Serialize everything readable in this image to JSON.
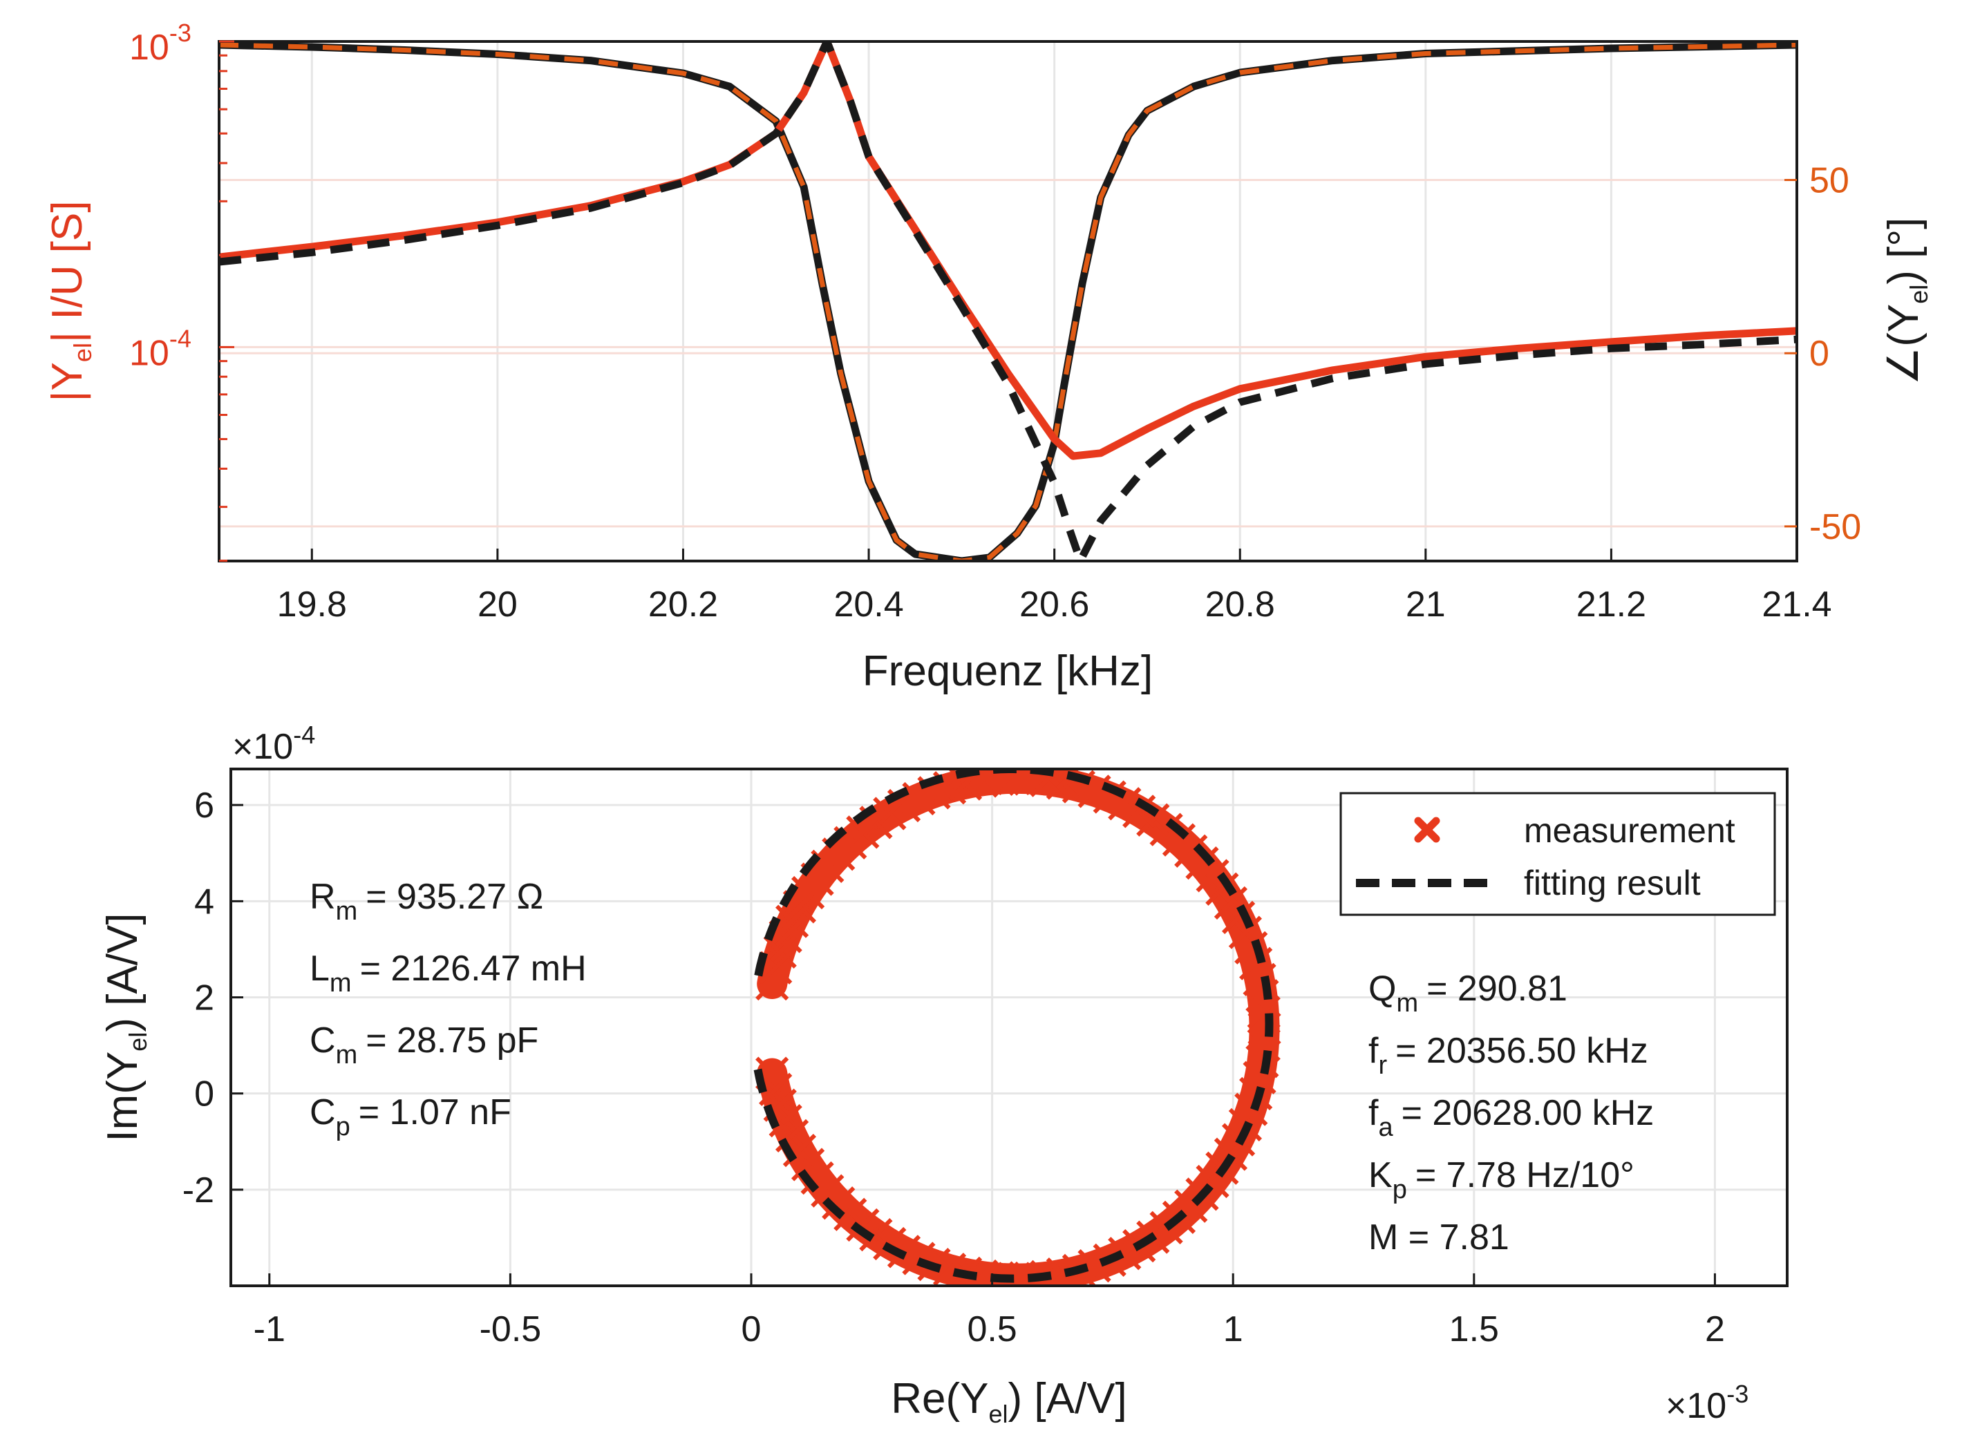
{
  "colors": {
    "measurement": "#e8391c",
    "fit": "#1a1a1a",
    "phase_fit_dash": "#e05a14",
    "left_axis": "#e0391e",
    "right_axis": "#e05a14",
    "grid": "#e6e6e6"
  },
  "chart_data": [
    {
      "type": "line",
      "title": "",
      "xlabel": "Frequenz [kHz]",
      "ylabel_left": {
        "pre": "|Y",
        "sub": "el",
        "post": "| I/U [S]"
      },
      "ylabel_right": {
        "pre": "∠(Y",
        "sub": "el",
        "post": ") [°]"
      },
      "xlim": [
        19.7,
        21.4
      ],
      "xticks": [
        "19.8",
        "20",
        "20.2",
        "20.4",
        "20.6",
        "20.8",
        "21",
        "21.2",
        "21.4"
      ],
      "xtick_values": [
        19.8,
        20.0,
        20.2,
        20.4,
        20.6,
        20.8,
        21.0,
        21.2,
        21.4
      ],
      "ylim_left_log10": [
        -4.7,
        -3.0
      ],
      "yticks_left": [
        {
          "base": "10",
          "exp": "-3",
          "value": 0.001
        },
        {
          "base": "10",
          "exp": "-4",
          "value": 0.0001
        }
      ],
      "ylim_right": [
        -60,
        90
      ],
      "yticks_right": [
        "-50",
        "0",
        "50"
      ],
      "ytick_right_values": [
        -50,
        0,
        50
      ],
      "series": [
        {
          "name": "|Y_el| measurement",
          "axis": "left",
          "style": "solid",
          "x": [
            19.7,
            19.8,
            19.9,
            20.0,
            20.1,
            20.2,
            20.25,
            20.3,
            20.33,
            20.355,
            20.38,
            20.4,
            20.45,
            20.5,
            20.55,
            20.6,
            20.62,
            20.65,
            20.7,
            20.75,
            20.8,
            20.9,
            21.0,
            21.1,
            21.2,
            21.3,
            21.4
          ],
          "y": [
            0.000197,
            0.000213,
            0.000232,
            0.000256,
            0.00029,
            0.000348,
            0.000395,
            0.0005,
            0.00068,
            0.001,
            0.00064,
            0.00042,
            0.000243,
            0.00014,
            8.2e-05,
            5e-05,
            4.4e-05,
            4.5e-05,
            5.4e-05,
            6.4e-05,
            7.3e-05,
            8.4e-05,
            9.3e-05,
            9.9e-05,
            0.000104,
            0.000109,
            0.000113
          ]
        },
        {
          "name": "|Y_el| fitting result",
          "axis": "left",
          "style": "dashed",
          "x": [
            19.7,
            19.8,
            19.9,
            20.0,
            20.1,
            20.2,
            20.25,
            20.3,
            20.33,
            20.355,
            20.38,
            20.4,
            20.45,
            20.5,
            20.55,
            20.6,
            20.615,
            20.628,
            20.65,
            20.7,
            20.75,
            20.8,
            20.9,
            21.0,
            21.1,
            21.2,
            21.3,
            21.4
          ],
          "y": [
            0.00019,
            0.000204,
            0.000224,
            0.00025,
            0.000285,
            0.000345,
            0.000393,
            0.0005,
            0.00068,
            0.001,
            0.00064,
            0.00042,
            0.00024,
            0.000136,
            7.6e-05,
            3.6e-05,
            2.6e-05,
            2e-05,
            2.7e-05,
            4.1e-05,
            5.5e-05,
            6.6e-05,
            7.9e-05,
            8.8e-05,
            9.4e-05,
            9.9e-05,
            0.000102,
            0.000106
          ]
        },
        {
          "name": "phase measurement",
          "axis": "right",
          "style": "solid",
          "x": [
            19.7,
            19.8,
            19.9,
            20.0,
            20.1,
            20.2,
            20.25,
            20.3,
            20.33,
            20.35,
            20.37,
            20.4,
            20.43,
            20.45,
            20.5,
            20.53,
            20.56,
            20.58,
            20.6,
            20.61,
            20.63,
            20.65,
            20.68,
            20.7,
            20.75,
            20.8,
            20.9,
            21.0,
            21.2,
            21.4
          ],
          "y": [
            89,
            88.4,
            87.5,
            86.3,
            84.5,
            80.8,
            77,
            67,
            48,
            20,
            -6,
            -37,
            -54,
            -58,
            -60,
            -59,
            -52,
            -44,
            -26,
            -10,
            20,
            45,
            63,
            70,
            77,
            81,
            84.5,
            86.5,
            88,
            89
          ]
        },
        {
          "name": "phase fitting result",
          "axis": "right",
          "style": "dashed",
          "x": [
            19.7,
            19.8,
            19.9,
            20.0,
            20.1,
            20.2,
            20.25,
            20.3,
            20.33,
            20.35,
            20.37,
            20.4,
            20.43,
            20.45,
            20.5,
            20.53,
            20.56,
            20.58,
            20.6,
            20.61,
            20.63,
            20.65,
            20.68,
            20.7,
            20.75,
            20.8,
            20.9,
            21.0,
            21.2,
            21.4
          ],
          "y": [
            89,
            88.4,
            87.5,
            86.3,
            84.5,
            80.8,
            77,
            67,
            48,
            20,
            -6,
            -37,
            -54,
            -58,
            -60,
            -59,
            -52,
            -44,
            -26,
            -10,
            20,
            45,
            63,
            70,
            77,
            81,
            84.5,
            86.5,
            88,
            89
          ]
        }
      ]
    },
    {
      "type": "scatter",
      "title": "",
      "xlabel": {
        "pre": "Re(Y",
        "sub": "el",
        "post": ") [A/V]"
      },
      "ylabel": {
        "pre": "Im(Y",
        "sub": "el",
        "post": ") [A/V]"
      },
      "xlim": [
        -1.08,
        2.15
      ],
      "ylim": [
        -4.0,
        6.75
      ],
      "xticks": [
        "-1",
        "-0.5",
        "0",
        "0.5",
        "1",
        "1.5",
        "2"
      ],
      "xtick_values": [
        -1,
        -0.5,
        0,
        0.5,
        1,
        1.5,
        2
      ],
      "yticks": [
        "-2",
        "0",
        "2",
        "4",
        "6"
      ],
      "ytick_values": [
        -2,
        0,
        2,
        4,
        6
      ],
      "x_exponent": {
        "base": "×10",
        "exp": "-3"
      },
      "y_exponent": {
        "base": "×10",
        "exp": "-4"
      },
      "legend": {
        "position": "top-right",
        "entries": [
          {
            "label": "measurement",
            "marker": "x"
          },
          {
            "label": "fitting result",
            "marker": "dash"
          }
        ]
      },
      "series": [
        {
          "name": "measurement",
          "shape": "circle",
          "center_x": 0.55,
          "center_y": 1.35,
          "radius_x": 0.515,
          "radius_y": 5.2,
          "thickness": 0.03,
          "gap_angle_deg": 180
        },
        {
          "name": "fitting result",
          "shape": "circle",
          "center_x": 0.54,
          "center_y": 1.45,
          "radius_x": 0.535,
          "radius_y": 5.3,
          "gap_angle_deg": 180
        }
      ],
      "annotations_left": [
        {
          "pre": "R",
          "sub": "m",
          "post": "= 935.27 Ω"
        },
        {
          "pre": "L",
          "sub": "m",
          "post": "= 2126.47 mH"
        },
        {
          "pre": "C",
          "sub": "m",
          "post": "= 28.75 pF"
        },
        {
          "pre": "C",
          "sub": "p",
          "post": "= 1.07 nF"
        }
      ],
      "annotations_right": [
        {
          "pre": "Q",
          "sub": "m",
          "post": "= 290.81"
        },
        {
          "pre": "f",
          "sub": "r",
          "post": "= 20356.50 kHz"
        },
        {
          "pre": "f",
          "sub": "a",
          "post": "= 20628.00 kHz"
        },
        {
          "pre": "K",
          "sub": "p",
          "post": "= 7.78 Hz/10°"
        },
        {
          "pre": "M = 7.81",
          "sub": "",
          "post": ""
        }
      ]
    }
  ]
}
